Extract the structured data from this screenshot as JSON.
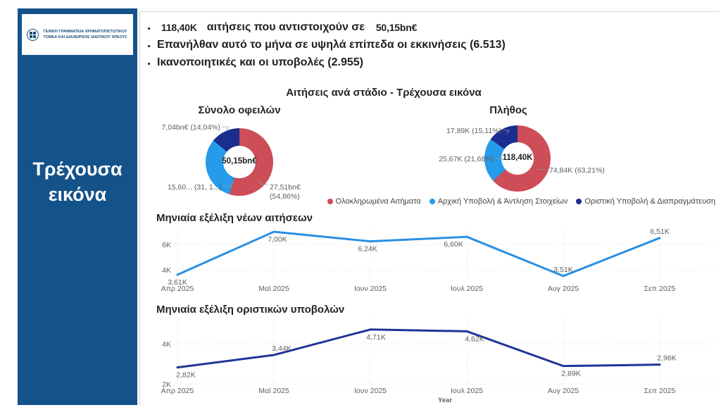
{
  "sidebar": {
    "bg_color": "#14528A",
    "logo_text": "ΓΕΝΙΚΗ ΓΡΑΜΜΑΤΕΙΑ ΧΡΗΜΑΤΟΠΙΣΤΩΤΙΚΟΥ ΤΟΜΕΑ ΚΑΙ ΔΙΑΧΕΙΡΙΣΗΣ ΙΔΙΩΤΙΚΟΥ ΧΡΕΟΥΣ",
    "title": "Τρέχουσα εικόνα"
  },
  "bullets": {
    "line1_value1": "118,40K",
    "line1_text": "αιτήσεις που αντιστοιχούν σε",
    "line1_value2": "50,15bn€",
    "line2": "Επανήλθαν αυτό το μήνα σε υψηλά επίπεδα οι εκκινήσεις (6.513)",
    "line3": "Ικανοποιητικές και οι υποβολές (2.955)"
  },
  "section_title": "Αιτήσεις ανά στάδιο - Τρέχουσα εικόνα",
  "legend": [
    {
      "label": "Ολοκληρωμένα Αιτήματα",
      "color": "#CD4D58"
    },
    {
      "label": "Αρχική Υποβολή & Άντληση Στοιχείων",
      "color": "#259BE9"
    },
    {
      "label": "Οριστική Υποβολή & Διαπραγμάτευση",
      "color": "#1B2D8F"
    }
  ],
  "chart_data": [
    {
      "type": "pie",
      "title": "Σύνολο οφειλών",
      "center_label": "50,15bn€",
      "slices": [
        {
          "name": "Ολοκληρωμένα Αιτήματα",
          "label": "27,51bn€ (54,86%)",
          "value": 54.86,
          "color": "#CD4D58"
        },
        {
          "name": "Αρχική Υποβολή & Άντληση Στοιχείων",
          "label": "15,60... (31, 1...)",
          "value": 31.1,
          "color": "#259BE9"
        },
        {
          "name": "Οριστική Υποβολή & Διαπραγμάτευση",
          "label": "7,04bn€ (14,04%)",
          "value": 14.04,
          "color": "#1B2D8F"
        }
      ]
    },
    {
      "type": "pie",
      "title": "Πλήθος",
      "center_label": "118,40K",
      "slices": [
        {
          "name": "Ολοκληρωμένα Αιτήματα",
          "label": "74,84K (63,21%)",
          "value": 63.21,
          "color": "#CD4D58"
        },
        {
          "name": "Αρχική Υποβολή & Άντληση Στοιχείων",
          "label": "25,67K (21,68%)",
          "value": 21.68,
          "color": "#259BE9"
        },
        {
          "name": "Οριστική Υποβολή & Διαπραγμάτευση",
          "label": "17,89K (15,11%)",
          "value": 15.11,
          "color": "#1B2D8F"
        }
      ]
    },
    {
      "type": "line",
      "title": "Μηνιαία εξέλιξη νέων αιτήσεων",
      "x": [
        "Απρ 2025",
        "Μαϊ 2025",
        "Ιουν 2025",
        "Ιουλ 2025",
        "Αυγ 2025",
        "Σεπ 2025"
      ],
      "values": [
        3.61,
        7.0,
        6.24,
        6.6,
        3.51,
        6.51
      ],
      "labels": [
        "3,61K",
        "7,00K",
        "6,24K",
        "6,60K",
        "3,51K",
        "6,51K"
      ],
      "label_pos": [
        "below",
        "below",
        "below",
        "below",
        "above",
        "above"
      ],
      "label_dx": [
        0,
        5,
        -4,
        -19,
        0,
        0
      ],
      "yticks": [
        4,
        6
      ],
      "ytick_labels": [
        "4K",
        "6K"
      ],
      "ylim": [
        3.2,
        7.3
      ],
      "color": "#2A90E2",
      "xlabel": ""
    },
    {
      "type": "line",
      "title": "Μηνιαία εξέλιξη οριστικών υποβολών",
      "x": [
        "Απρ 2025",
        "Μαϊ 2025",
        "Ιουν 2025",
        "Ιουλ 2025",
        "Αυγ 2025",
        "Σεπ 2025"
      ],
      "values": [
        2.82,
        3.44,
        4.71,
        4.62,
        2.89,
        2.96
      ],
      "labels": [
        "2,82K",
        "3,44K",
        "4,71K",
        "4,62K",
        "2,89K",
        "2,96K"
      ],
      "label_pos": [
        "below",
        "above",
        "below",
        "below",
        "below",
        "above"
      ],
      "label_dx": [
        12,
        11,
        8,
        11,
        11,
        10
      ],
      "yticks": [
        2,
        4
      ],
      "ytick_labels": [
        "2K",
        "4K"
      ],
      "ylim": [
        2,
        5.1
      ],
      "color": "#203496",
      "xlabel": "Year"
    }
  ]
}
